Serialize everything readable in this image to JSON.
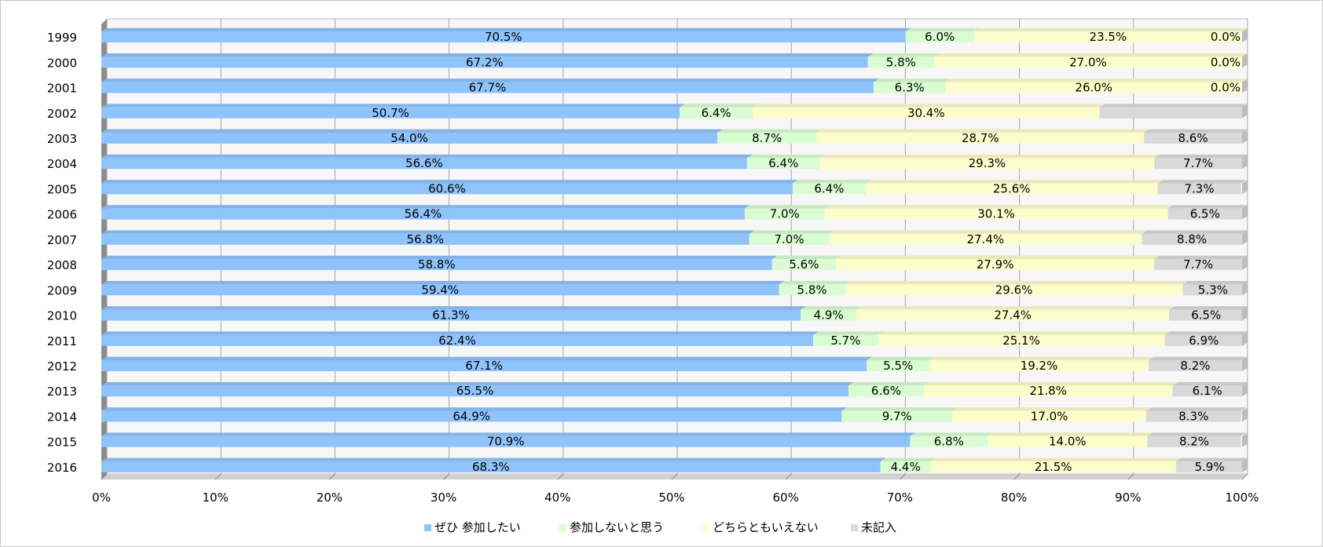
{
  "chart_data": {
    "type": "bar",
    "orientation": "horizontal",
    "stacked": "percent",
    "categories": [
      "1999",
      "2000",
      "2001",
      "2002",
      "2003",
      "2004",
      "2005",
      "2006",
      "2007",
      "2008",
      "2009",
      "2010",
      "2011",
      "2012",
      "2013",
      "2014",
      "2015",
      "2016"
    ],
    "series": [
      {
        "name": "ぜひ 参加したい",
        "color": "#8fc3fb",
        "values": [
          70.5,
          67.2,
          67.7,
          50.7,
          54.0,
          56.6,
          60.6,
          56.4,
          56.8,
          58.8,
          59.4,
          61.3,
          62.4,
          67.1,
          65.5,
          64.9,
          70.9,
          68.3
        ],
        "labels": [
          "70.5%",
          "67.2%",
          "67.7%",
          "50.7%",
          "54.0%",
          "56.6%",
          "60.6%",
          "56.4%",
          "56.8%",
          "58.8%",
          "59.4%",
          "61.3%",
          "62.4%",
          "67.1%",
          "65.5%",
          "64.9%",
          "70.9%",
          "68.3%"
        ]
      },
      {
        "name": "参加しないと思う",
        "color": "#d9fcd2",
        "values": [
          6.0,
          5.8,
          6.3,
          6.4,
          8.7,
          6.4,
          6.4,
          7.0,
          7.0,
          5.6,
          5.8,
          4.9,
          5.7,
          5.5,
          6.6,
          9.7,
          6.8,
          4.4
        ],
        "labels": [
          "6.0%",
          "5.8%",
          "6.3%",
          "6.4%",
          "8.7%",
          "6.4%",
          "6.4%",
          "7.0%",
          "7.0%",
          "5.6%",
          "5.8%",
          "4.9%",
          "5.7%",
          "5.5%",
          "6.6%",
          "9.7%",
          "6.8%",
          "4.4%"
        ]
      },
      {
        "name": "どちらともいえない",
        "color": "#fdfdcc",
        "values": [
          23.5,
          27.0,
          26.0,
          30.4,
          28.7,
          29.3,
          25.6,
          30.1,
          27.4,
          27.9,
          29.6,
          27.4,
          25.1,
          19.2,
          21.8,
          17.0,
          14.0,
          21.5
        ],
        "labels": [
          "23.5%",
          "27.0%",
          "26.0%",
          "30.4%",
          "28.7%",
          "29.3%",
          "25.6%",
          "30.1%",
          "27.4%",
          "27.9%",
          "29.6%",
          "27.4%",
          "25.1%",
          "19.2%",
          "21.8%",
          "17.0%",
          "14.0%",
          "21.5%"
        ]
      },
      {
        "name": "未記入",
        "color": "#d9d9d9",
        "values": [
          0.0,
          0.0,
          0.0,
          12.5,
          8.6,
          7.7,
          7.3,
          6.5,
          8.8,
          7.7,
          5.3,
          6.5,
          6.9,
          8.2,
          6.1,
          8.3,
          8.2,
          5.9
        ],
        "labels": [
          "0.0%",
          "0.0%",
          "0.0%",
          "",
          "8.6%",
          "7.7%",
          "7.3%",
          "6.5%",
          "8.8%",
          "7.7%",
          "5.3%",
          "6.5%",
          "6.9%",
          "8.2%",
          "6.1%",
          "8.3%",
          "8.2%",
          "5.9%"
        ]
      }
    ],
    "xlim": [
      0,
      100
    ],
    "xticks": [
      "0%",
      "10%",
      "20%",
      "30%",
      "40%",
      "50%",
      "60%",
      "70%",
      "80%",
      "90%",
      "100%"
    ],
    "grid": true,
    "legend_position": "bottom",
    "colors": {
      "plot_back": "#f7f7f7",
      "plot_left_wall": "#8c8c8c",
      "grid": "#a6a6a6"
    }
  }
}
